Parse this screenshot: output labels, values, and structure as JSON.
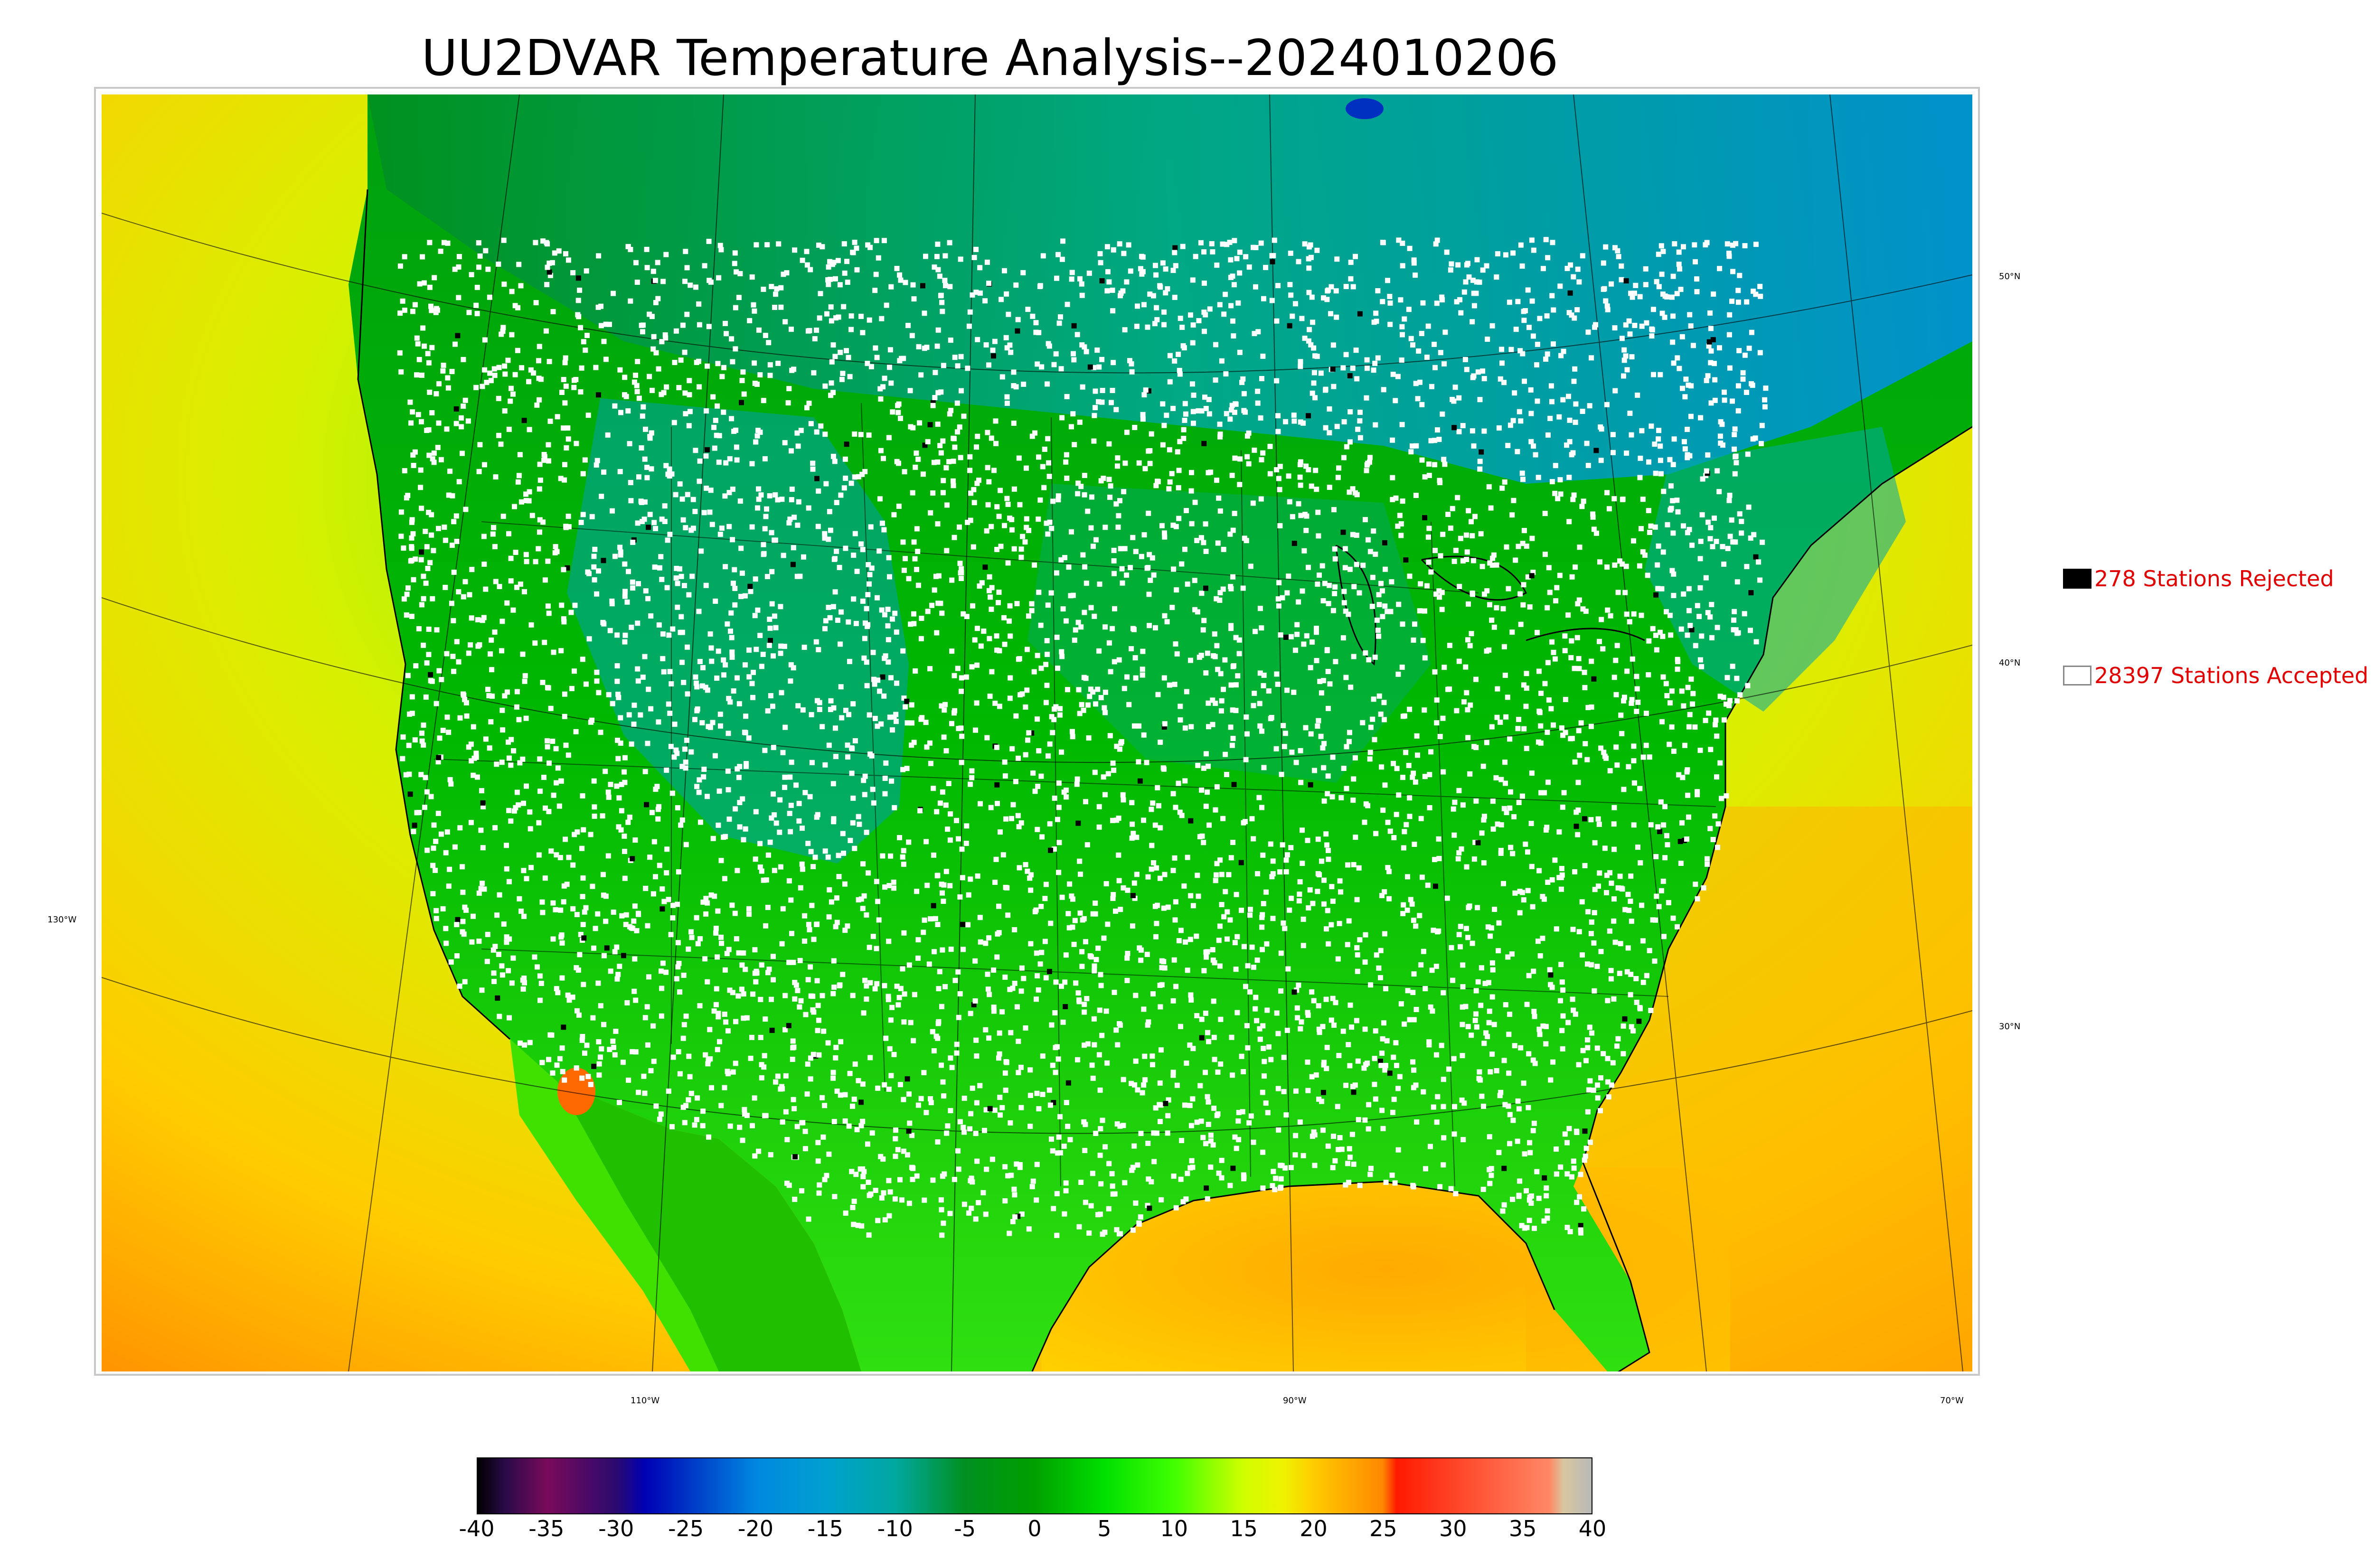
{
  "title": "UU2DVAR Temperature Analysis--2024010206",
  "map": {
    "lat_labels": [
      {
        "text": "50°N",
        "lat": 50
      },
      {
        "text": "40°N",
        "lat": 40
      },
      {
        "text": "30°N",
        "lat": 30
      }
    ],
    "lon_labels": [
      {
        "text": "130°W",
        "lon": -130
      },
      {
        "text": "110°W",
        "lon": -110
      },
      {
        "text": "90°W",
        "lon": -90
      },
      {
        "text": "70°W",
        "lon": -70
      }
    ],
    "station_color_accepted": "#ffffff",
    "station_color_rejected": "#000000",
    "coastline_color": "#000000"
  },
  "legend": {
    "rejected": {
      "label": "278 Stations Rejected",
      "swatch_color": "#000000"
    },
    "accepted": {
      "label": "28397 Stations Accepted",
      "swatch_color": "#ffffff"
    }
  },
  "colorbar": {
    "min": -40,
    "max": 40,
    "ticks": [
      "-40",
      "-35",
      "-30",
      "-25",
      "-20",
      "-15",
      "-10",
      "-5",
      "0",
      "5",
      "10",
      "15",
      "20",
      "25",
      "30",
      "35",
      "40"
    ],
    "colors": {
      "c_-40": "#000000",
      "c_-38": "#2a0a4a",
      "c_-35": "#7a0a5a",
      "c_-30": "#2a0a70",
      "c_-28": "#0000b4",
      "c_-20": "#0088e0",
      "c_-15": "#00a0d0",
      "c_-10": "#00a8a0",
      "c_-5": "#009020",
      "c_0": "#00a000",
      "c_5": "#00e000",
      "c_10": "#40ff00",
      "c_15": "#d0ff00",
      "c_18": "#f0f000",
      "c_20": "#ffcc00",
      "c_25": "#ff8800",
      "c_26": "#ff1a00",
      "c_37": "#ff8866",
      "c_38": "#d8c8a0",
      "c_40": "#b8b8b8"
    }
  }
}
